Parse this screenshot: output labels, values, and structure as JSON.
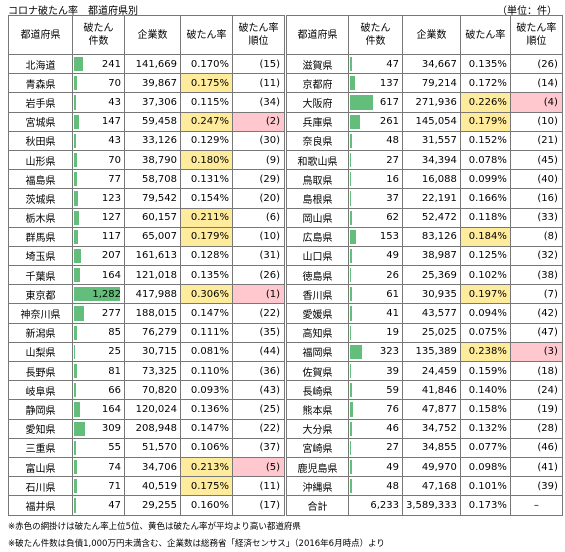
{
  "header": {
    "title": "コロナ破たん率　都道府県別",
    "unit": "（単位：件）"
  },
  "colors": {
    "bar": "#63be7b",
    "yellow": "#ffeb9c",
    "pink": "#ffc7ce"
  },
  "tables": [
    {
      "headers": [
        [
          "都道府県"
        ],
        [
          "破たん",
          "件数"
        ],
        [
          "企業数"
        ],
        [
          "破たん率"
        ],
        [
          "破たん率",
          "順位"
        ]
      ],
      "rows": [
        {
          "name": "北海道",
          "count": 241,
          "firms": "141,669",
          "rate": "0.170%",
          "rank": "(15)"
        },
        {
          "name": "青森県",
          "count": 70,
          "firms": "39,867",
          "rate": "0.175%",
          "rank": "(11)",
          "rate_fill": "yellow"
        },
        {
          "name": "岩手県",
          "count": 43,
          "firms": "37,306",
          "rate": "0.115%",
          "rank": "(34)"
        },
        {
          "name": "宮城県",
          "count": 147,
          "firms": "59,458",
          "rate": "0.247%",
          "rank": "(2)",
          "rate_fill": "yellow",
          "rank_fill": "pink"
        },
        {
          "name": "秋田県",
          "count": 43,
          "firms": "33,126",
          "rate": "0.129%",
          "rank": "(30)"
        },
        {
          "name": "山形県",
          "count": 70,
          "firms": "38,790",
          "rate": "0.180%",
          "rank": "(9)",
          "rate_fill": "yellow"
        },
        {
          "name": "福島県",
          "count": 77,
          "firms": "58,708",
          "rate": "0.131%",
          "rank": "(29)"
        },
        {
          "name": "茨城県",
          "count": 123,
          "firms": "79,542",
          "rate": "0.154%",
          "rank": "(20)"
        },
        {
          "name": "栃木県",
          "count": 127,
          "firms": "60,157",
          "rate": "0.211%",
          "rank": "(6)",
          "rate_fill": "yellow"
        },
        {
          "name": "群馬県",
          "count": 117,
          "firms": "65,007",
          "rate": "0.179%",
          "rank": "(10)",
          "rate_fill": "yellow"
        },
        {
          "name": "埼玉県",
          "count": 207,
          "firms": "161,613",
          "rate": "0.128%",
          "rank": "(31)"
        },
        {
          "name": "千葉県",
          "count": 164,
          "firms": "121,018",
          "rate": "0.135%",
          "rank": "(26)"
        },
        {
          "name": "東京都",
          "count": {
            "value": 1282,
            "label": "1,282"
          },
          "firms": "417,988",
          "rate": "0.306%",
          "rank": "(1)",
          "rate_fill": "yellow",
          "rank_fill": "pink"
        },
        {
          "name": "神奈川県",
          "count": 277,
          "firms": "188,015",
          "rate": "0.147%",
          "rank": "(22)"
        },
        {
          "name": "新潟県",
          "count": 85,
          "firms": "76,279",
          "rate": "0.111%",
          "rank": "(35)"
        },
        {
          "name": "山梨県",
          "count": 25,
          "firms": "30,715",
          "rate": "0.081%",
          "rank": "(44)"
        },
        {
          "name": "長野県",
          "count": 81,
          "firms": "73,325",
          "rate": "0.110%",
          "rank": "(36)"
        },
        {
          "name": "岐阜県",
          "count": 66,
          "firms": "70,820",
          "rate": "0.093%",
          "rank": "(43)"
        },
        {
          "name": "静岡県",
          "count": 164,
          "firms": "120,024",
          "rate": "0.136%",
          "rank": "(25)"
        },
        {
          "name": "愛知県",
          "count": 309,
          "firms": "208,948",
          "rate": "0.147%",
          "rank": "(22)"
        },
        {
          "name": "三重県",
          "count": 55,
          "firms": "51,570",
          "rate": "0.106%",
          "rank": "(37)"
        },
        {
          "name": "富山県",
          "count": 74,
          "firms": "34,706",
          "rate": "0.213%",
          "rank": "(5)",
          "rate_fill": "yellow",
          "rank_fill": "pink"
        },
        {
          "name": "石川県",
          "count": 71,
          "firms": "40,519",
          "rate": "0.175%",
          "rank": "(11)",
          "rate_fill": "yellow"
        },
        {
          "name": "福井県",
          "count": 47,
          "firms": "29,255",
          "rate": "0.160%",
          "rank": "(17)"
        }
      ]
    },
    {
      "headers": [
        [
          "都道府県"
        ],
        [
          "破たん",
          "件数"
        ],
        [
          "企業数"
        ],
        [
          "破たん率"
        ],
        [
          "破たん率",
          "順位"
        ]
      ],
      "rows": [
        {
          "name": "滋賀県",
          "count": 47,
          "firms": "34,667",
          "rate": "0.135%",
          "rank": "(26)"
        },
        {
          "name": "京都府",
          "count": 137,
          "firms": "79,214",
          "rate": "0.172%",
          "rank": "(14)"
        },
        {
          "name": "大阪府",
          "count": 617,
          "firms": "271,936",
          "rate": "0.226%",
          "rank": "(4)",
          "rate_fill": "yellow",
          "rank_fill": "pink"
        },
        {
          "name": "兵庫県",
          "count": 261,
          "firms": "145,054",
          "rate": "0.179%",
          "rank": "(10)",
          "rate_fill": "yellow"
        },
        {
          "name": "奈良県",
          "count": 48,
          "firms": "31,557",
          "rate": "0.152%",
          "rank": "(21)"
        },
        {
          "name": "和歌山県",
          "count": 27,
          "firms": "34,394",
          "rate": "0.078%",
          "rank": "(45)"
        },
        {
          "name": "鳥取県",
          "count": 16,
          "firms": "16,088",
          "rate": "0.099%",
          "rank": "(40)"
        },
        {
          "name": "島根県",
          "count": 37,
          "firms": "22,191",
          "rate": "0.166%",
          "rank": "(16)"
        },
        {
          "name": "岡山県",
          "count": 62,
          "firms": "52,472",
          "rate": "0.118%",
          "rank": "(33)"
        },
        {
          "name": "広島県",
          "count": 153,
          "firms": "83,126",
          "rate": "0.184%",
          "rank": "(8)",
          "rate_fill": "yellow"
        },
        {
          "name": "山口県",
          "count": 49,
          "firms": "38,987",
          "rate": "0.125%",
          "rank": "(32)"
        },
        {
          "name": "徳島県",
          "count": 26,
          "firms": "25,369",
          "rate": "0.102%",
          "rank": "(38)"
        },
        {
          "name": "香川県",
          "count": 61,
          "firms": "30,935",
          "rate": "0.197%",
          "rank": "(7)",
          "rate_fill": "yellow"
        },
        {
          "name": "愛媛県",
          "count": 41,
          "firms": "43,577",
          "rate": "0.094%",
          "rank": "(42)"
        },
        {
          "name": "高知県",
          "count": 19,
          "firms": "25,025",
          "rate": "0.075%",
          "rank": "(47)"
        },
        {
          "name": "福岡県",
          "count": 323,
          "firms": "135,389",
          "rate": "0.238%",
          "rank": "(3)",
          "rate_fill": "yellow",
          "rank_fill": "pink"
        },
        {
          "name": "佐賀県",
          "count": 39,
          "firms": "24,459",
          "rate": "0.159%",
          "rank": "(18)"
        },
        {
          "name": "長崎県",
          "count": 59,
          "firms": "41,846",
          "rate": "0.140%",
          "rank": "(24)"
        },
        {
          "name": "熊本県",
          "count": 76,
          "firms": "47,877",
          "rate": "0.158%",
          "rank": "(19)"
        },
        {
          "name": "大分県",
          "count": 46,
          "firms": "34,752",
          "rate": "0.132%",
          "rank": "(28)"
        },
        {
          "name": "宮崎県",
          "count": 27,
          "firms": "34,855",
          "rate": "0.077%",
          "rank": "(46)"
        },
        {
          "name": "鹿児島県",
          "count": 49,
          "firms": "49,970",
          "rate": "0.098%",
          "rank": "(41)"
        },
        {
          "name": "沖縄県",
          "count": 48,
          "firms": "47,168",
          "rate": "0.101%",
          "rank": "(39)"
        }
      ],
      "total": {
        "name": "合計",
        "count": "6,233",
        "firms": "3,589,333",
        "rate": "0.173%",
        "rank": "–"
      }
    }
  ],
  "notes": [
    "※赤色の網掛けは破たん率上位5位、黄色は破たん率が平均より高い都道府県",
    "※破たん件数は負債1,000万円未満含む、企業数は総務省「経済センサス」（2016年6月時点）より"
  ]
}
